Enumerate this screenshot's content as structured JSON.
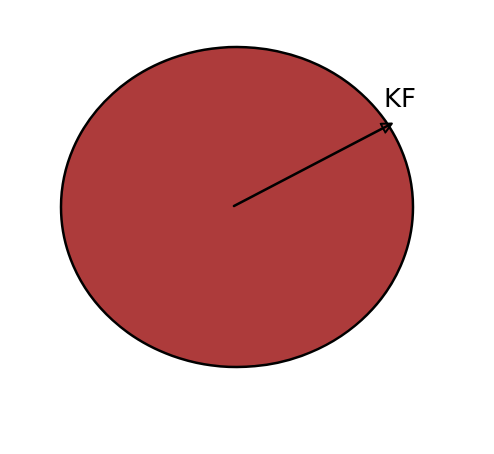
{
  "diagram": {
    "vector_label": "KF",
    "colors": {
      "sphere_fill": "#ad3b3b",
      "sphere_outline": "#000000",
      "arrow": "#000000",
      "label": "#000000",
      "background": "#ffffff"
    }
  }
}
